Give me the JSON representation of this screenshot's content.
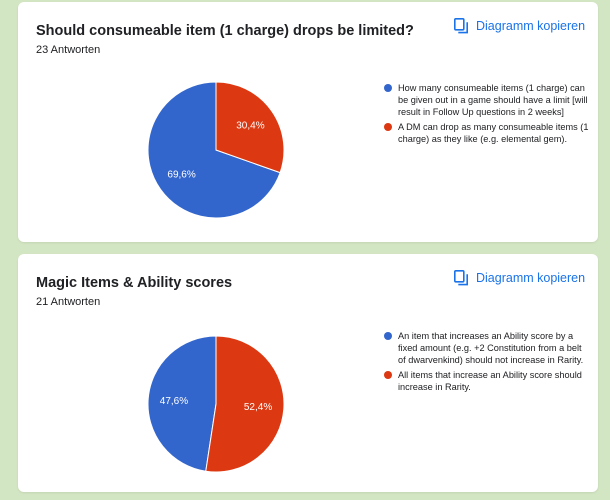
{
  "colors": {
    "blue": "#3366cc",
    "red": "#dc3912",
    "accent": "#1a73e8",
    "background": "#d3e6c3"
  },
  "copy_icon": "copy-icon",
  "charts": [
    {
      "title": "Should consumeable item (1 charge) drops be limited?",
      "responses": "23 Antworten",
      "copy_label": "Diagramm kopieren",
      "legend": [
        "How many consumeable items (1 charge) can be given out in a game should have a limit [will result in Follow Up questions in 2 weeks]",
        "A DM can drop as many consumeable items (1 charge) as they like (e.g. elemental gem)."
      ],
      "slice_labels": [
        "69,6%",
        "30,4%"
      ]
    },
    {
      "title": "Magic Items & Ability scores",
      "responses": "21 Antworten",
      "copy_label": "Diagramm kopieren",
      "legend": [
        "An item that increases an Ability score by a fixed amount (e.g. +2 Constitution from a belt of dwarvenkind) should not increase in Rarity.",
        "All items that increase an Ability score should increase in Rarity."
      ],
      "slice_labels": [
        "47,6%",
        "52,4%"
      ]
    }
  ],
  "chart_data": [
    {
      "type": "pie",
      "title": "Should consumeable item (1 charge) drops be limited?",
      "categories": [
        "How many consumeable items (1 charge) can be given out in a game should have a limit [will result in Follow Up questions in 2 weeks]",
        "A DM can drop as many consumeable items (1 charge) as they like (e.g. elemental gem)."
      ],
      "values": [
        69.6,
        30.4
      ],
      "colors": [
        "#3366cc",
        "#dc3912"
      ],
      "legend": "right"
    },
    {
      "type": "pie",
      "title": "Magic Items & Ability scores",
      "categories": [
        "An item that increases an Ability score by a fixed amount (e.g. +2 Constitution from a belt of dwarvenkind) should not increase in Rarity.",
        "All items that increase an Ability score should increase in Rarity."
      ],
      "values": [
        47.6,
        52.4
      ],
      "colors": [
        "#3366cc",
        "#dc3912"
      ],
      "legend": "right"
    }
  ]
}
